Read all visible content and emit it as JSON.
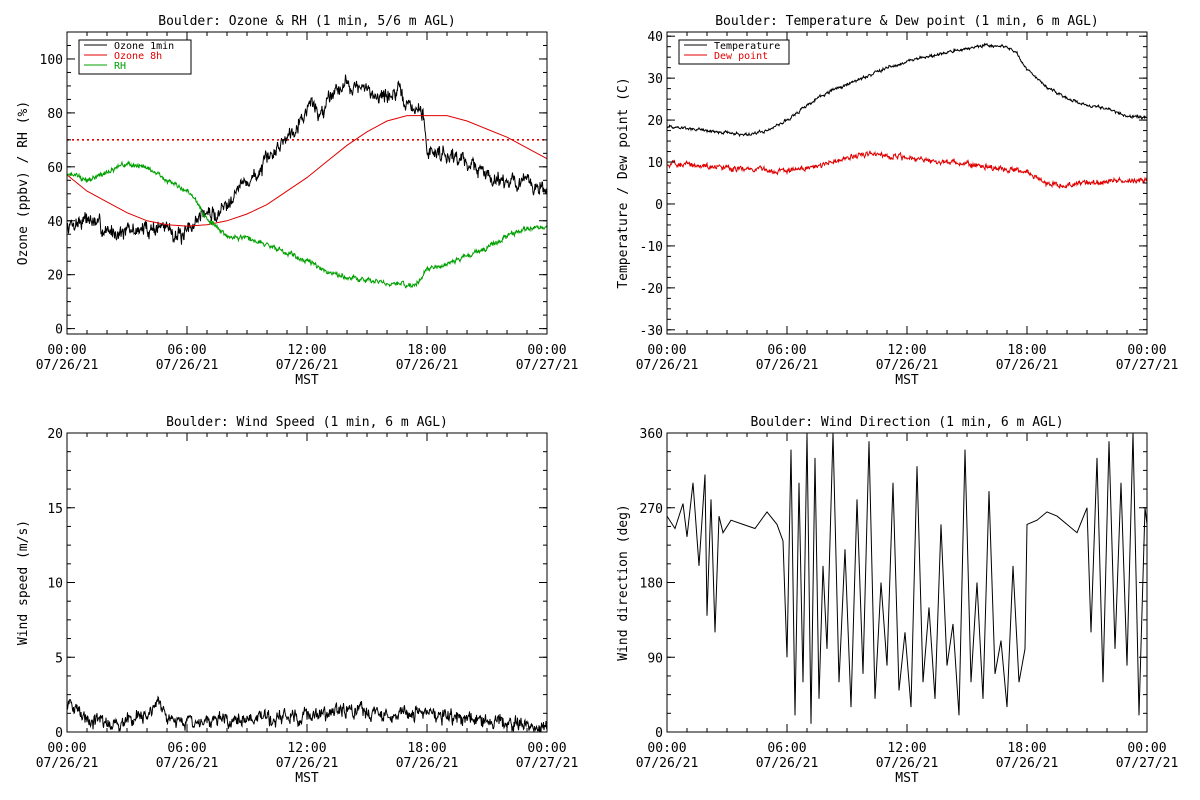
{
  "chart_data": [
    {
      "type": "line",
      "title": "Boulder: Ozone & RH (1 min, 5/6 m AGL)",
      "xlabel": "MST",
      "ylabel": "Ozone (ppbv) / RH (%)",
      "xlim": [
        0,
        24
      ],
      "ylim": [
        -2,
        110
      ],
      "yticks": [
        0,
        20,
        40,
        60,
        80,
        100
      ],
      "xtick_labels": [
        {
          "x": 0,
          "time": "00:00",
          "date": "07/26/21"
        },
        {
          "x": 6,
          "time": "06:00",
          "date": "07/26/21"
        },
        {
          "x": 12,
          "time": "12:00",
          "date": "07/26/21"
        },
        {
          "x": 18,
          "time": "18:00",
          "date": "07/26/21"
        },
        {
          "x": 24,
          "time": "00:00",
          "date": "07/27/21"
        }
      ],
      "legend": {
        "position": "top-left",
        "entries": [
          {
            "label": "Ozone 1min",
            "color": "#000000"
          },
          {
            "label": "Ozone 8h",
            "color": "#e00000"
          },
          {
            "label": "RH",
            "color": "#00a000"
          }
        ]
      },
      "reference_line": {
        "y": 70,
        "color": "#e00000",
        "style": "dotted"
      },
      "series": [
        {
          "name": "Ozone 1min",
          "color": "#000000",
          "noise": 2.8,
          "x": [
            0,
            1,
            2,
            3,
            4,
            5,
            5.8,
            6.2,
            6.8,
            7.5,
            8.5,
            9.5,
            10.5,
            11.5,
            12.0,
            12.3,
            12.6,
            13.2,
            14.0,
            15.0,
            16.0,
            16.5,
            17.0,
            17.8,
            18.0,
            19.0,
            20.0,
            21.0,
            22.0,
            23.0,
            24.0
          ],
          "y": [
            38,
            41,
            36,
            36,
            37,
            38,
            33,
            38,
            43,
            42,
            52,
            57,
            67,
            76,
            81,
            85,
            78,
            88,
            91,
            88,
            86,
            88,
            83,
            80,
            66,
            65,
            62,
            57,
            55,
            54,
            51
          ]
        },
        {
          "name": "Ozone 8h",
          "color": "#e00000",
          "noise": 0,
          "x": [
            0,
            1,
            2,
            3,
            4,
            5,
            6,
            7,
            8,
            9,
            10,
            11,
            12,
            13,
            14,
            15,
            16,
            17,
            18,
            19,
            20,
            21,
            22,
            23,
            24
          ],
          "y": [
            57,
            51,
            47,
            43,
            40,
            38.5,
            38,
            38.5,
            40,
            42.5,
            46,
            51,
            56,
            62,
            68,
            73,
            77,
            79,
            79,
            79,
            77,
            74,
            71,
            67,
            63
          ]
        },
        {
          "name": "RH",
          "color": "#00a000",
          "noise": 0.9,
          "x": [
            0,
            1,
            2,
            3,
            4,
            5,
            6,
            6.5,
            7,
            7.5,
            8,
            9,
            10,
            11,
            12,
            13,
            14,
            15,
            16,
            17,
            17.5,
            18,
            19,
            20,
            21,
            22,
            23,
            24
          ],
          "y": [
            58,
            55,
            58,
            61,
            60,
            55,
            51,
            47,
            40,
            38,
            34,
            34,
            31,
            28,
            25,
            21,
            19,
            18,
            17,
            16,
            17,
            22,
            24,
            27,
            30,
            34,
            37,
            38
          ]
        }
      ]
    },
    {
      "type": "line",
      "title": "Boulder: Temperature & Dew point (1 min, 6 m AGL)",
      "xlabel": "MST",
      "ylabel": "Temperature / Dew point (C)",
      "xlim": [
        0,
        24
      ],
      "ylim": [
        -31,
        41
      ],
      "yticks": [
        -30,
        -20,
        -10,
        0,
        10,
        20,
        30,
        40
      ],
      "xtick_labels": [
        {
          "x": 0,
          "time": "00:00",
          "date": "07/26/21"
        },
        {
          "x": 6,
          "time": "06:00",
          "date": "07/26/21"
        },
        {
          "x": 12,
          "time": "12:00",
          "date": "07/26/21"
        },
        {
          "x": 18,
          "time": "18:00",
          "date": "07/26/21"
        },
        {
          "x": 24,
          "time": "00:00",
          "date": "07/27/21"
        }
      ],
      "legend": {
        "position": "top-left",
        "entries": [
          {
            "label": "Temperature",
            "color": "#000000"
          },
          {
            "label": "Dew point",
            "color": "#e00000"
          }
        ]
      },
      "series": [
        {
          "name": "Temperature",
          "color": "#000000",
          "noise": 0.35,
          "x": [
            0,
            1,
            2,
            3,
            4,
            5,
            6,
            7,
            8,
            9,
            10,
            11,
            12,
            13,
            14,
            15,
            16,
            17,
            17.5,
            18,
            19,
            20,
            21,
            22,
            23,
            24
          ],
          "y": [
            18.5,
            18,
            17.5,
            17,
            16.5,
            17.5,
            20,
            23.5,
            26.5,
            28.5,
            30.5,
            32.5,
            34,
            35,
            36,
            37,
            38,
            37.5,
            36,
            32,
            28,
            25,
            23.5,
            22.5,
            21,
            20.5
          ]
        },
        {
          "name": "Dew point",
          "color": "#e00000",
          "noise": 0.6,
          "x": [
            0,
            1,
            2,
            3,
            4,
            5,
            6,
            7,
            8,
            9,
            10,
            11,
            12,
            13,
            14,
            15,
            16,
            17,
            18,
            19,
            20,
            21,
            22,
            23,
            24
          ],
          "y": [
            9.5,
            9.5,
            9,
            8.5,
            8.5,
            8,
            8,
            8.5,
            9.5,
            11,
            12,
            11.5,
            11,
            10.5,
            10,
            9.5,
            9,
            8.5,
            7.5,
            5,
            4.5,
            5,
            5.5,
            5.5,
            5.5
          ]
        }
      ]
    },
    {
      "type": "line",
      "title": "Boulder: Wind Speed (1 min, 6 m AGL)",
      "xlabel": "MST",
      "ylabel": "Wind speed (m/s)",
      "xlim": [
        0,
        24
      ],
      "ylim": [
        0,
        20
      ],
      "yticks": [
        0,
        5,
        10,
        15,
        20
      ],
      "xtick_labels": [
        {
          "x": 0,
          "time": "00:00",
          "date": "07/26/21"
        },
        {
          "x": 6,
          "time": "06:00",
          "date": "07/26/21"
        },
        {
          "x": 12,
          "time": "12:00",
          "date": "07/26/21"
        },
        {
          "x": 18,
          "time": "18:00",
          "date": "07/26/21"
        },
        {
          "x": 24,
          "time": "00:00",
          "date": "07/27/21"
        }
      ],
      "series": [
        {
          "name": "Wind speed",
          "color": "#000000",
          "noise": 0.45,
          "x": [
            0,
            0.5,
            1,
            2,
            3,
            4,
            4.5,
            5,
            5.5,
            6,
            7,
            8,
            9,
            10,
            11,
            12,
            13,
            14,
            15,
            16,
            17,
            18,
            19,
            20,
            21,
            22,
            23,
            24
          ],
          "y": [
            1.8,
            1.5,
            1.0,
            0.4,
            0.9,
            1.0,
            1.6,
            1.2,
            0.8,
            0.6,
            0.7,
            0.8,
            0.9,
            0.8,
            1.0,
            1.1,
            1.2,
            1.4,
            1.3,
            1.1,
            1.2,
            1.4,
            1.0,
            0.9,
            0.6,
            0.6,
            0.5,
            0.3
          ]
        }
      ]
    },
    {
      "type": "line",
      "title": "Boulder: Wind Direction (1 min, 6 m AGL)",
      "xlabel": "MST",
      "ylabel": "Wind direction (deg)",
      "xlim": [
        0,
        24
      ],
      "ylim": [
        0,
        360
      ],
      "yticks": [
        0,
        90,
        180,
        270,
        360
      ],
      "xtick_labels": [
        {
          "x": 0,
          "time": "00:00",
          "date": "07/26/21"
        },
        {
          "x": 6,
          "time": "06:00",
          "date": "07/26/21"
        },
        {
          "x": 12,
          "time": "12:00",
          "date": "07/26/21"
        },
        {
          "x": 18,
          "time": "18:00",
          "date": "07/26/21"
        },
        {
          "x": 24,
          "time": "00:00",
          "date": "07/27/21"
        }
      ],
      "series": [
        {
          "name": "Wind direction",
          "color": "#000000",
          "noise": 0,
          "x": [
            0,
            0.4,
            0.8,
            1.0,
            1.3,
            1.6,
            1.9,
            2.0,
            2.2,
            2.4,
            2.6,
            2.8,
            3.2,
            3.8,
            4.4,
            5.0,
            5.5,
            5.8,
            6.0,
            6.2,
            6.4,
            6.6,
            6.8,
            7.0,
            7.2,
            7.4,
            7.6,
            7.8,
            8.0,
            8.3,
            8.6,
            8.9,
            9.2,
            9.5,
            9.8,
            10.1,
            10.4,
            10.7,
            11.0,
            11.3,
            11.6,
            11.9,
            12.2,
            12.5,
            12.8,
            13.1,
            13.4,
            13.7,
            14.0,
            14.3,
            14.6,
            14.9,
            15.2,
            15.5,
            15.8,
            16.1,
            16.4,
            16.7,
            17.0,
            17.3,
            17.6,
            17.9,
            18.0,
            18.5,
            19.0,
            19.5,
            20.0,
            20.5,
            21.0,
            21.2,
            21.5,
            21.8,
            22.1,
            22.4,
            22.7,
            23.0,
            23.3,
            23.6,
            23.9,
            24.0
          ],
          "y": [
            260,
            245,
            275,
            235,
            300,
            200,
            310,
            140,
            280,
            120,
            260,
            240,
            255,
            250,
            245,
            265,
            250,
            230,
            90,
            340,
            20,
            300,
            60,
            360,
            10,
            330,
            40,
            200,
            100,
            360,
            60,
            220,
            30,
            280,
            70,
            350,
            40,
            180,
            80,
            300,
            50,
            120,
            30,
            320,
            60,
            150,
            40,
            250,
            80,
            130,
            20,
            340,
            60,
            180,
            40,
            290,
            70,
            110,
            30,
            200,
            60,
            100,
            250,
            255,
            265,
            260,
            250,
            240,
            270,
            120,
            330,
            60,
            350,
            100,
            300,
            80,
            360,
            20,
            270,
            250
          ]
        }
      ]
    }
  ]
}
